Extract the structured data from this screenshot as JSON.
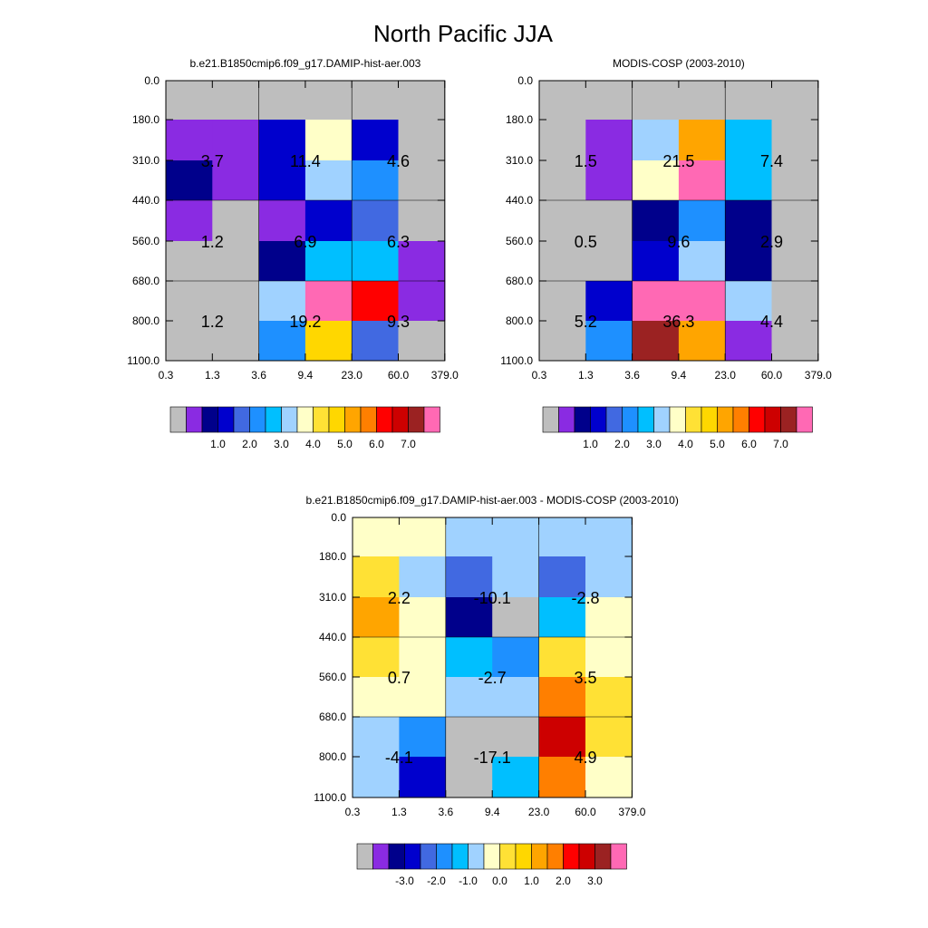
{
  "title": "North Pacific JJA",
  "palette": {
    "colors": [
      "#bebebe",
      "#8a2be2",
      "#00008b",
      "#0000cd",
      "#4169e1",
      "#1e90ff",
      "#00bfff",
      "#a0d2ff",
      "#ffffc8",
      "#ffe135",
      "#ffd700",
      "#ffa500",
      "#ff7f00",
      "#ff0000",
      "#cd0000",
      "#9b2222",
      "#ff69b4"
    ]
  },
  "chart_data": [
    {
      "type": "heatmap",
      "title": "b.e21.B1850cmip6.f09_g17.DAMIP-hist-aer.003",
      "x_ticks": [
        "0.3",
        "1.3",
        "3.6",
        "9.4",
        "23.0",
        "60.0",
        "379.0"
      ],
      "y_ticks": [
        "0.0",
        "180.0",
        "310.0",
        "440.0",
        "560.0",
        "680.0",
        "800.0",
        "1100.0"
      ],
      "cells": [
        [
          0,
          0,
          0,
          0,
          0,
          0
        ],
        [
          1,
          1,
          3,
          8,
          3,
          0
        ],
        [
          2,
          1,
          3,
          7,
          5,
          0
        ],
        [
          1,
          0,
          1,
          3,
          4,
          0
        ],
        [
          0,
          0,
          2,
          6,
          6,
          1
        ],
        [
          0,
          0,
          7,
          16,
          13,
          1
        ],
        [
          0,
          0,
          5,
          10,
          4,
          0
        ]
      ],
      "block_labels": [
        {
          "text": "3.7",
          "col": 1,
          "row": 1
        },
        {
          "text": "11.4",
          "col": 3,
          "row": 1
        },
        {
          "text": "4.6",
          "col": 5,
          "row": 1
        },
        {
          "text": "1.2",
          "col": 1,
          "row": 3
        },
        {
          "text": "6.9",
          "col": 3,
          "row": 3
        },
        {
          "text": "6.3",
          "col": 5,
          "row": 3
        },
        {
          "text": "1.2",
          "col": 1,
          "row": 5
        },
        {
          "text": "19.2",
          "col": 3,
          "row": 5
        },
        {
          "text": "9.3",
          "col": 5,
          "row": 5
        }
      ],
      "colorbar_labels": [
        "1.0",
        "2.0",
        "3.0",
        "4.0",
        "5.0",
        "6.0",
        "7.0"
      ]
    },
    {
      "type": "heatmap",
      "title": "MODIS-COSP (2003-2010)",
      "x_ticks": [
        "0.3",
        "1.3",
        "3.6",
        "9.4",
        "23.0",
        "60.0",
        "379.0"
      ],
      "y_ticks": [
        "0.0",
        "180.0",
        "310.0",
        "440.0",
        "560.0",
        "680.0",
        "800.0",
        "1100.0"
      ],
      "cells": [
        [
          0,
          0,
          0,
          0,
          0,
          0
        ],
        [
          0,
          1,
          7,
          11,
          6,
          0
        ],
        [
          0,
          1,
          8,
          16,
          6,
          0
        ],
        [
          0,
          0,
          2,
          5,
          2,
          0
        ],
        [
          0,
          0,
          3,
          7,
          2,
          0
        ],
        [
          0,
          3,
          16,
          16,
          7,
          0
        ],
        [
          0,
          5,
          15,
          11,
          1,
          0
        ]
      ],
      "block_labels": [
        {
          "text": "1.5",
          "col": 1,
          "row": 1
        },
        {
          "text": "21.5",
          "col": 3,
          "row": 1
        },
        {
          "text": "7.4",
          "col": 5,
          "row": 1
        },
        {
          "text": "0.5",
          "col": 1,
          "row": 3
        },
        {
          "text": "9.6",
          "col": 3,
          "row": 3
        },
        {
          "text": "2.9",
          "col": 5,
          "row": 3
        },
        {
          "text": "5.2",
          "col": 1,
          "row": 5
        },
        {
          "text": "36.3",
          "col": 3,
          "row": 5
        },
        {
          "text": "4.4",
          "col": 5,
          "row": 5
        }
      ],
      "colorbar_labels": [
        "1.0",
        "2.0",
        "3.0",
        "4.0",
        "5.0",
        "6.0",
        "7.0"
      ]
    },
    {
      "type": "heatmap",
      "title": "b.e21.B1850cmip6.f09_g17.DAMIP-hist-aer.003 - MODIS-COSP (2003-2010)",
      "x_ticks": [
        "0.3",
        "1.3",
        "3.6",
        "9.4",
        "23.0",
        "60.0",
        "379.0"
      ],
      "y_ticks": [
        "0.0",
        "180.0",
        "310.0",
        "440.0",
        "560.0",
        "680.0",
        "800.0",
        "1100.0"
      ],
      "cells": [
        [
          8,
          8,
          7,
          7,
          7,
          7
        ],
        [
          9,
          7,
          4,
          7,
          4,
          7
        ],
        [
          11,
          8,
          2,
          0,
          6,
          8
        ],
        [
          9,
          8,
          6,
          5,
          9,
          8
        ],
        [
          8,
          8,
          7,
          7,
          12,
          9
        ],
        [
          7,
          5,
          0,
          0,
          14,
          9
        ],
        [
          7,
          3,
          0,
          6,
          12,
          8
        ]
      ],
      "block_labels": [
        {
          "text": "2.2",
          "col": 1,
          "row": 1
        },
        {
          "text": "-10.1",
          "col": 3,
          "row": 1
        },
        {
          "text": "-2.8",
          "col": 5,
          "row": 1
        },
        {
          "text": "0.7",
          "col": 1,
          "row": 3
        },
        {
          "text": "-2.7",
          "col": 3,
          "row": 3
        },
        {
          "text": "3.5",
          "col": 5,
          "row": 3
        },
        {
          "text": "-4.1",
          "col": 1,
          "row": 5
        },
        {
          "text": "-17.1",
          "col": 3,
          "row": 5
        },
        {
          "text": "4.9",
          "col": 5,
          "row": 5
        }
      ],
      "colorbar_labels": [
        "-3.0",
        "-2.0",
        "-1.0",
        "0.0",
        "1.0",
        "2.0",
        "3.0"
      ]
    }
  ]
}
